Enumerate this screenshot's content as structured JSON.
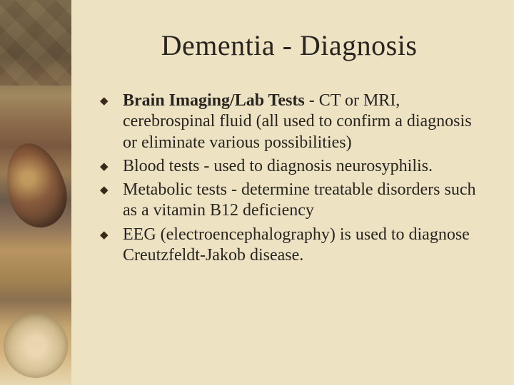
{
  "slide": {
    "title": "Dementia - Diagnosis",
    "background_color": "#ede2c2",
    "title_color": "#282420",
    "text_color": "#282420",
    "bullet_color": "#3a2818",
    "title_fontsize": 40,
    "body_fontsize": 24,
    "font_family": "Times New Roman",
    "bullets": [
      {
        "lead": "Brain Imaging/Lab Tests",
        "rest": " - CT or MRI, cerebrospinal fluid (all used to confirm a diagnosis or eliminate various possibilities)"
      },
      {
        "lead": "",
        "rest": "Blood tests - used to diagnosis neurosyphilis."
      },
      {
        "lead": "",
        "rest": "Metabolic tests - determine treatable disorders such as a vitamin B12 deficiency"
      },
      {
        "lead": "",
        "rest": "EEG (electroencephalography) is used to diagnose Creutzfeldt-Jakob disease."
      }
    ]
  }
}
